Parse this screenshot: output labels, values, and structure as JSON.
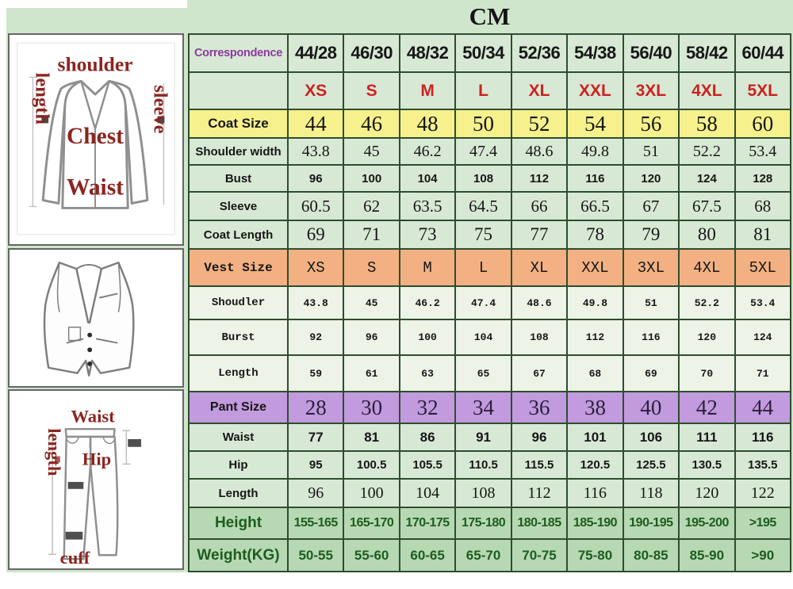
{
  "title": "CM",
  "colors": {
    "background_green": "#cfe5cc",
    "row_green": "#d7e9d4",
    "vest_row_bg": "#edf3e7",
    "coat_size_bg": "#f6f08d",
    "vest_size_bg": "#f3b183",
    "pant_size_bg": "#c29ade",
    "body_row_bg": "#b6d8b2",
    "body_text_green": "#1d5c20",
    "size_red": "#cd2121",
    "correspondence_purple": "#8e3a9e",
    "table_border": "#2e4d2e",
    "sketch_label_red": "#8b2520",
    "sketch_line_gray": "#8f8f8f"
  },
  "chart_data": {
    "type": "table",
    "title": "CM",
    "header": {
      "label": "Correspondence",
      "columns": [
        "44/28",
        "46/30",
        "48/32",
        "50/34",
        "52/36",
        "54/38",
        "56/40",
        "58/42",
        "60/44"
      ],
      "sizes": [
        "XS",
        "S",
        "M",
        "L",
        "XL",
        "XXL",
        "3XL",
        "4XL",
        "5XL"
      ]
    },
    "rows": [
      {
        "kind": "coat_size",
        "label": "Coat Size",
        "values": [
          "44",
          "46",
          "48",
          "50",
          "52",
          "54",
          "56",
          "58",
          "60"
        ]
      },
      {
        "kind": "shoulder",
        "label": "Shoulder width",
        "values": [
          "43.8",
          "45",
          "46.2",
          "47.4",
          "48.6",
          "49.8",
          "51",
          "52.2",
          "53.4"
        ]
      },
      {
        "kind": "bust",
        "label": "Bust",
        "values": [
          "96",
          "100",
          "104",
          "108",
          "112",
          "116",
          "120",
          "124",
          "128"
        ]
      },
      {
        "kind": "sleeve",
        "label": "Sleeve",
        "values": [
          "60.5",
          "62",
          "63.5",
          "64.5",
          "66",
          "66.5",
          "67",
          "67.5",
          "68"
        ]
      },
      {
        "kind": "coat_length",
        "label": "Coat Length",
        "values": [
          "69",
          "71",
          "73",
          "75",
          "77",
          "78",
          "79",
          "80",
          "81"
        ]
      },
      {
        "kind": "vest_size",
        "label": "Vest Size",
        "values": [
          "XS",
          "S",
          "M",
          "L",
          "XL",
          "XXL",
          "3XL",
          "4XL",
          "5XL"
        ]
      },
      {
        "kind": "vest",
        "label": "Shoudler",
        "values": [
          "43.8",
          "45",
          "46.2",
          "47.4",
          "48.6",
          "49.8",
          "51",
          "52.2",
          "53.4"
        ]
      },
      {
        "kind": "vest",
        "label": "Burst",
        "values": [
          "92",
          "96",
          "100",
          "104",
          "108",
          "112",
          "116",
          "120",
          "124"
        ]
      },
      {
        "kind": "vest",
        "label": "Length",
        "values": [
          "59",
          "61",
          "63",
          "65",
          "67",
          "68",
          "69",
          "70",
          "71"
        ]
      },
      {
        "kind": "pant_size",
        "label": "Pant Size",
        "values": [
          "28",
          "30",
          "32",
          "34",
          "36",
          "38",
          "40",
          "42",
          "44"
        ]
      },
      {
        "kind": "waist",
        "label": "Waist",
        "values": [
          "77",
          "81",
          "86",
          "91",
          "96",
          "101",
          "106",
          "111",
          "116"
        ]
      },
      {
        "kind": "hip",
        "label": "Hip",
        "values": [
          "95",
          "100.5",
          "105.5",
          "110.5",
          "115.5",
          "120.5",
          "125.5",
          "130.5",
          "135.5"
        ]
      },
      {
        "kind": "pant_length",
        "label": "Length",
        "values": [
          "96",
          "100",
          "104",
          "108",
          "112",
          "116",
          "118",
          "120",
          "122"
        ]
      },
      {
        "kind": "height",
        "label": "Height",
        "values": [
          "155-165",
          "165-170",
          "170-175",
          "175-180",
          "180-185",
          "185-190",
          "190-195",
          "195-200",
          ">195"
        ]
      },
      {
        "kind": "weight",
        "label": "Weight(KG)",
        "values": [
          "50-55",
          "55-60",
          "60-65",
          "65-70",
          "70-75",
          "75-80",
          "80-85",
          "85-90",
          ">90"
        ]
      }
    ]
  },
  "illustrations": {
    "jacket": {
      "top": "shoulder",
      "left": "length",
      "right": "sleeve",
      "center": "Chest",
      "lower": "Waist"
    },
    "pants": {
      "top": "Waist",
      "left": "length",
      "center": "Hip",
      "bottom": "cuff"
    }
  }
}
